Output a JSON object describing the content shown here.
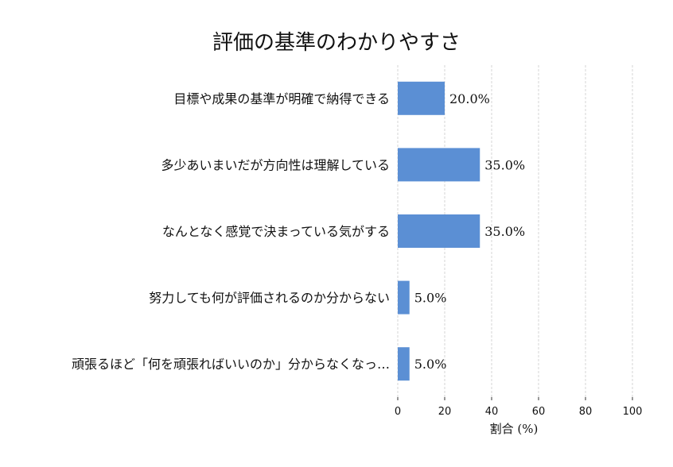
{
  "chart_data": {
    "type": "bar",
    "orientation": "horizontal",
    "title": "評価の基準のわかりやすさ",
    "xlabel": "割合 (%)",
    "ylabel": "",
    "xlim": [
      0,
      100
    ],
    "xticks": [
      0,
      20,
      40,
      60,
      80,
      100
    ],
    "grid": "vertical-dashed",
    "categories": [
      "目標や成果の基準が明確で納得できる",
      "多少あいまいだが方向性は理解している",
      "なんとなく感覚で決まっている気がする",
      "努力しても何が評価されるのか分からない",
      "頑張るほど「何を頑張ればいいのか」分からなくなっ…"
    ],
    "values": [
      20.0,
      35.0,
      35.0,
      5.0,
      5.0
    ],
    "data_labels": [
      "20.0%",
      "35.0%",
      "35.0%",
      "5.0%",
      "5.0%"
    ],
    "bar_color": "#5b8fd4"
  }
}
